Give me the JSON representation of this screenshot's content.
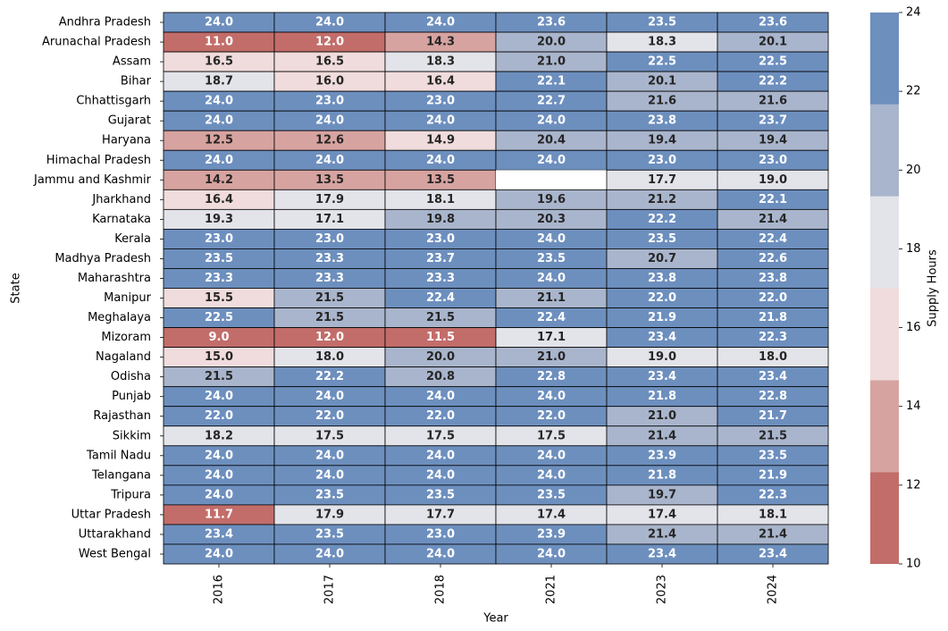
{
  "chart_data": {
    "type": "heatmap",
    "xlabel": "Year",
    "ylabel": "State",
    "x": [
      "2016",
      "2017",
      "2018",
      "2021",
      "2023",
      "2024"
    ],
    "y": [
      "Andhra Pradesh",
      "Arunachal Pradesh",
      "Assam",
      "Bihar",
      "Chhattisgarh",
      "Gujarat",
      "Haryana",
      "Himachal Pradesh",
      "Jammu and Kashmir",
      "Jharkhand",
      "Karnataka",
      "Kerala",
      "Madhya Pradesh",
      "Maharashtra",
      "Manipur",
      "Meghalaya",
      "Mizoram",
      "Nagaland",
      "Odisha",
      "Punjab",
      "Rajasthan",
      "Sikkim",
      "Tamil Nadu",
      "Telangana",
      "Tripura",
      "Uttar Pradesh",
      "Uttarakhand",
      "West Bengal"
    ],
    "values": [
      [
        24.0,
        24.0,
        24.0,
        23.6,
        23.5,
        23.6
      ],
      [
        11.0,
        12.0,
        14.3,
        20.0,
        18.3,
        20.1
      ],
      [
        16.5,
        16.5,
        18.3,
        21.0,
        22.5,
        22.5
      ],
      [
        18.7,
        16.0,
        16.4,
        22.1,
        20.1,
        22.2
      ],
      [
        24.0,
        23.0,
        23.0,
        22.7,
        21.6,
        21.6
      ],
      [
        24.0,
        24.0,
        24.0,
        24.0,
        23.8,
        23.7
      ],
      [
        12.5,
        12.6,
        14.9,
        20.4,
        19.4,
        19.4
      ],
      [
        24.0,
        24.0,
        24.0,
        24.0,
        23.0,
        23.0
      ],
      [
        14.2,
        13.5,
        13.5,
        null,
        17.7,
        19.0
      ],
      [
        16.4,
        17.9,
        18.1,
        19.6,
        21.2,
        22.1
      ],
      [
        19.3,
        17.1,
        19.8,
        20.3,
        22.2,
        21.4
      ],
      [
        23.0,
        23.0,
        23.0,
        24.0,
        23.5,
        22.4
      ],
      [
        23.5,
        23.3,
        23.7,
        23.5,
        20.7,
        22.6
      ],
      [
        23.3,
        23.3,
        23.3,
        24.0,
        23.8,
        23.8
      ],
      [
        15.5,
        21.5,
        22.4,
        21.1,
        22.0,
        22.0
      ],
      [
        22.5,
        21.5,
        21.5,
        22.4,
        21.9,
        21.8
      ],
      [
        9.0,
        12.0,
        11.5,
        17.1,
        23.4,
        22.3
      ],
      [
        15.0,
        18.0,
        20.0,
        21.0,
        19.0,
        18.0
      ],
      [
        21.5,
        22.2,
        20.8,
        22.8,
        23.4,
        23.4
      ],
      [
        24.0,
        24.0,
        24.0,
        24.0,
        21.8,
        22.8
      ],
      [
        22.0,
        22.0,
        22.0,
        22.0,
        21.0,
        21.7
      ],
      [
        18.2,
        17.5,
        17.5,
        17.5,
        21.4,
        21.5
      ],
      [
        24.0,
        24.0,
        24.0,
        24.0,
        23.9,
        23.5
      ],
      [
        24.0,
        24.0,
        24.0,
        24.0,
        21.8,
        21.9
      ],
      [
        24.0,
        23.5,
        23.5,
        23.5,
        19.7,
        22.3
      ],
      [
        11.7,
        17.9,
        17.7,
        17.4,
        17.4,
        18.1
      ],
      [
        23.4,
        23.5,
        23.0,
        23.9,
        21.4,
        21.4
      ],
      [
        24.0,
        24.0,
        24.0,
        24.0,
        23.4,
        23.4
      ]
    ],
    "value_format": "0.0",
    "colorbar": {
      "label": "Supply Hours",
      "range": [
        10,
        24
      ],
      "ticks": [
        10,
        12,
        14,
        16,
        18,
        20,
        22,
        24
      ]
    },
    "colormap": {
      "type": "discrete",
      "bins": [
        {
          "min": 10.0,
          "max": 12.333,
          "color": "#c26d6a"
        },
        {
          "min": 12.333,
          "max": 14.667,
          "color": "#d7a3a0"
        },
        {
          "min": 14.667,
          "max": 17.0,
          "color": "#f0dcdc"
        },
        {
          "min": 17.0,
          "max": 19.333,
          "color": "#e3e3ea"
        },
        {
          "min": 19.333,
          "max": 21.667,
          "color": "#a9b5cc"
        },
        {
          "min": 21.667,
          "max": 24.0,
          "color": "#6d8fbe"
        }
      ],
      "text_color_dark_bins": [
        "#ffffff",
        "#262626",
        "#262626",
        "#262626",
        "#262626",
        "#ffffff"
      ],
      "missing_color": "#ffffff"
    },
    "grid": false
  }
}
